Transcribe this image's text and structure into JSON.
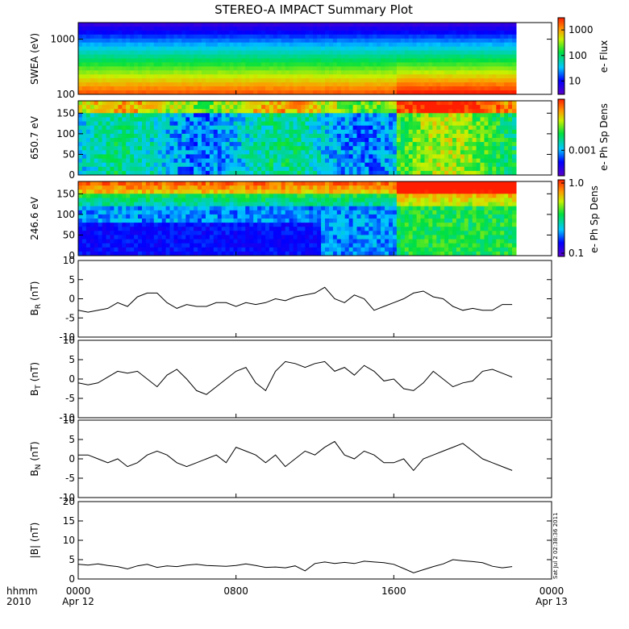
{
  "title": "STEREO-A IMPACT Summary Plot",
  "stamp": "Sat Jul  2 02:38:36 2011",
  "time_axis": {
    "row1_label": "hhmm",
    "row2_label": "2010",
    "ticks": [
      {
        "hour": 0,
        "label": "0000",
        "date": "Apr 12"
      },
      {
        "hour": 8,
        "label": "0800",
        "date": ""
      },
      {
        "hour": 16,
        "label": "1600",
        "date": ""
      },
      {
        "hour": 24,
        "label": "0000",
        "date": "Apr 13"
      }
    ],
    "data_end_hour": 22.2
  },
  "chart_data": [
    {
      "type": "heatmap",
      "ylabel": "SWEA (eV)",
      "ylog": true,
      "ylim": [
        100,
        2000
      ],
      "yticks": [
        100,
        1000
      ],
      "colorbar": {
        "label": "e- Flux",
        "log": true,
        "range": [
          3,
          3000
        ],
        "ticks": [
          10,
          100,
          1000
        ],
        "tick_labels": [
          "10",
          "100",
          "1000"
        ]
      },
      "description_rows": "energy rows from high (blue, low flux) to low (red, high flux); low energies brighten toward end of day"
    },
    {
      "type": "heatmap",
      "ylabel": "650.7 eV",
      "ylim": [
        0,
        180
      ],
      "yticks": [
        0,
        50,
        100,
        150
      ],
      "colorbar": {
        "label": "e- Ph Sp Dens",
        "log": true,
        "ticks": [
          0.001
        ],
        "tick_labels": [
          "0.001"
        ]
      }
    },
    {
      "type": "heatmap",
      "ylabel": "246.6 eV",
      "ylim": [
        0,
        180
      ],
      "yticks": [
        0,
        50,
        100,
        150
      ],
      "colorbar": {
        "label": "e- Ph Sp Dens",
        "log": true,
        "range": [
          0.1,
          1.0
        ],
        "ticks": [
          0.1,
          1.0
        ],
        "tick_labels": [
          "0.1",
          "1.0"
        ]
      }
    },
    {
      "type": "line",
      "ylabel": "B",
      "ysub": "R",
      "yunit": "(nT)",
      "ylim": [
        -10,
        10
      ],
      "yticks": [
        -10,
        -5,
        0,
        5,
        10
      ],
      "x_hours": [
        0,
        0.5,
        1,
        1.5,
        2,
        2.5,
        3,
        3.5,
        4,
        4.5,
        5,
        5.5,
        6,
        6.5,
        7,
        7.5,
        8,
        8.5,
        9,
        9.5,
        10,
        10.5,
        11,
        11.5,
        12,
        12.5,
        13,
        13.5,
        14,
        14.5,
        15,
        15.5,
        16,
        16.5,
        17,
        17.5,
        18,
        18.5,
        19,
        19.5,
        20,
        20.5,
        21,
        21.5,
        22
      ],
      "values": [
        -3,
        -3.5,
        -3,
        -2.5,
        -1,
        -2,
        0.5,
        1.5,
        1.5,
        -1,
        -2.5,
        -1.5,
        -2,
        -2,
        -1,
        -1,
        -2,
        -1,
        -1.5,
        -1,
        0,
        -0.5,
        0.5,
        1,
        1.5,
        3,
        0,
        -1,
        1,
        0,
        -3,
        -2,
        -1,
        0,
        1.5,
        2,
        0.5,
        0,
        -2,
        -3,
        -2.5,
        -3,
        -3,
        -1.5,
        -1.5
      ]
    },
    {
      "type": "line",
      "ylabel": "B",
      "ysub": "T",
      "yunit": "(nT)",
      "ylim": [
        -10,
        10
      ],
      "yticks": [
        -10,
        -5,
        0,
        5,
        10
      ],
      "x_hours": [
        0,
        0.5,
        1,
        1.5,
        2,
        2.5,
        3,
        3.5,
        4,
        4.5,
        5,
        5.5,
        6,
        6.5,
        7,
        7.5,
        8,
        8.5,
        9,
        9.5,
        10,
        10.5,
        11,
        11.5,
        12,
        12.5,
        13,
        13.5,
        14,
        14.5,
        15,
        15.5,
        16,
        16.5,
        17,
        17.5,
        18,
        18.5,
        19,
        19.5,
        20,
        20.5,
        21,
        21.5,
        22
      ],
      "values": [
        -1,
        -1.5,
        -1,
        0.5,
        2,
        1.5,
        2,
        0,
        -2,
        1,
        2.5,
        0,
        -3,
        -4,
        -2,
        0,
        2,
        3,
        -1,
        -3,
        2,
        4.5,
        4,
        3,
        4,
        4.5,
        2,
        3,
        1,
        3.5,
        2,
        -0.5,
        0,
        -2.5,
        -3,
        -1,
        2,
        0,
        -2,
        -1,
        -0.5,
        2,
        2.5,
        1.5,
        0.5
      ]
    },
    {
      "type": "line",
      "ylabel": "B",
      "ysub": "N",
      "yunit": "(nT)",
      "ylim": [
        -10,
        10
      ],
      "yticks": [
        -10,
        -5,
        0,
        5,
        10
      ],
      "x_hours": [
        0,
        0.5,
        1,
        1.5,
        2,
        2.5,
        3,
        3.5,
        4,
        4.5,
        5,
        5.5,
        6,
        6.5,
        7,
        7.5,
        8,
        8.5,
        9,
        9.5,
        10,
        10.5,
        11,
        11.5,
        12,
        12.5,
        13,
        13.5,
        14,
        14.5,
        15,
        15.5,
        16,
        16.5,
        17,
        17.5,
        18,
        18.5,
        19,
        19.5,
        20,
        20.5,
        21,
        21.5,
        22
      ],
      "values": [
        1,
        1,
        0,
        -1,
        0,
        -2,
        -1,
        1,
        2,
        1,
        -1,
        -2,
        -1,
        0,
        1,
        -1,
        3,
        2,
        1,
        -1,
        1,
        -2,
        0,
        2,
        1,
        3,
        4.5,
        1,
        0,
        2,
        1,
        -1,
        -1,
        0,
        -3,
        0,
        1,
        2,
        3,
        4,
        2,
        0,
        -1,
        -2,
        -3
      ]
    },
    {
      "type": "line",
      "ylabel": "|B|",
      "yunit": "(nT)",
      "ylim": [
        0,
        20
      ],
      "yticks": [
        0,
        5,
        10,
        15,
        20
      ],
      "x_hours": [
        0,
        0.5,
        1,
        1.5,
        2,
        2.5,
        3,
        3.5,
        4,
        4.5,
        5,
        5.5,
        6,
        6.5,
        7,
        7.5,
        8,
        8.5,
        9,
        9.5,
        10,
        10.5,
        11,
        11.5,
        12,
        12.5,
        13,
        13.5,
        14,
        14.5,
        15,
        15.5,
        16,
        16.5,
        17,
        17.5,
        18,
        18.5,
        19,
        19.5,
        20,
        20.5,
        21,
        21.5,
        22
      ],
      "values": [
        3.8,
        3.6,
        3.9,
        3.5,
        3.2,
        2.6,
        3.4,
        3.8,
        3.0,
        3.4,
        3.2,
        3.6,
        3.8,
        3.5,
        3.4,
        3.3,
        3.5,
        3.9,
        3.5,
        3.0,
        3.1,
        2.9,
        3.4,
        2.1,
        4.0,
        4.4,
        4.0,
        4.3,
        4.0,
        4.6,
        4.4,
        4.2,
        3.8,
        2.7,
        1.6,
        2.4,
        3.2,
        3.9,
        5.0,
        4.7,
        4.5,
        4.2,
        3.3,
        2.9,
        3.2
      ]
    }
  ]
}
